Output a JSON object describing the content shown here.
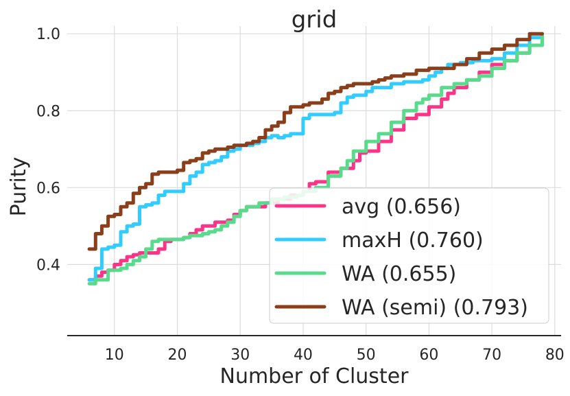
{
  "chart_data": {
    "type": "line",
    "title": "grid",
    "xlabel": "Number of Cluster",
    "ylabel": "Purity",
    "xlim": [
      2.5,
      81
    ],
    "ylim": [
      0.215,
      1.02
    ],
    "xticks": [
      10,
      20,
      30,
      40,
      50,
      60,
      70,
      80
    ],
    "xtick_labels": [
      "10",
      "20",
      "30",
      "40",
      "50",
      "60",
      "70",
      "80"
    ],
    "yticks": [
      0.4,
      0.6,
      0.8,
      1.0
    ],
    "ytick_labels": [
      "0.4",
      "0.6",
      "0.8",
      "1.0"
    ],
    "grid": true,
    "legend_position": "lower-right",
    "series": [
      {
        "name": "avg (0.656)",
        "color": "#fa3486",
        "points": [
          [
            6,
            0.36
          ],
          [
            7,
            0.37
          ],
          [
            8,
            0.38
          ],
          [
            9,
            0.385
          ],
          [
            10,
            0.4
          ],
          [
            11,
            0.41
          ],
          [
            12,
            0.42
          ],
          [
            13,
            0.425
          ],
          [
            14,
            0.43
          ],
          [
            16,
            0.43
          ],
          [
            17,
            0.44
          ],
          [
            18,
            0.46
          ],
          [
            19,
            0.465
          ],
          [
            21,
            0.47
          ],
          [
            22,
            0.48
          ],
          [
            23,
            0.49
          ],
          [
            24,
            0.5
          ],
          [
            25,
            0.5
          ],
          [
            26,
            0.51
          ],
          [
            28,
            0.515
          ],
          [
            29,
            0.53
          ],
          [
            30,
            0.54
          ],
          [
            31,
            0.55
          ],
          [
            33,
            0.55
          ],
          [
            34,
            0.56
          ],
          [
            36,
            0.57
          ],
          [
            38,
            0.58
          ],
          [
            40,
            0.59
          ],
          [
            41,
            0.61
          ],
          [
            42,
            0.615
          ],
          [
            44,
            0.64
          ],
          [
            46,
            0.65
          ],
          [
            48,
            0.67
          ],
          [
            49,
            0.69
          ],
          [
            50,
            0.695
          ],
          [
            52,
            0.72
          ],
          [
            54,
            0.75
          ],
          [
            56,
            0.78
          ],
          [
            57,
            0.78
          ],
          [
            58,
            0.79
          ],
          [
            60,
            0.81
          ],
          [
            62,
            0.83
          ],
          [
            63,
            0.845
          ],
          [
            64,
            0.86
          ],
          [
            66,
            0.88
          ],
          [
            68,
            0.9
          ],
          [
            70,
            0.92
          ],
          [
            72,
            0.93
          ],
          [
            74,
            0.95
          ],
          [
            76,
            0.97
          ],
          [
            78,
            1.0
          ]
        ]
      },
      {
        "name": "maxH (0.760)",
        "color": "#33ccff",
        "points": [
          [
            6,
            0.36
          ],
          [
            7,
            0.39
          ],
          [
            8,
            0.44
          ],
          [
            9,
            0.445
          ],
          [
            10,
            0.45
          ],
          [
            11,
            0.485
          ],
          [
            12,
            0.5
          ],
          [
            13,
            0.505
          ],
          [
            14,
            0.55
          ],
          [
            15,
            0.555
          ],
          [
            16,
            0.56
          ],
          [
            17,
            0.58
          ],
          [
            18,
            0.59
          ],
          [
            20,
            0.59
          ],
          [
            21,
            0.61
          ],
          [
            22,
            0.63
          ],
          [
            23,
            0.64
          ],
          [
            24,
            0.66
          ],
          [
            25,
            0.665
          ],
          [
            26,
            0.67
          ],
          [
            27,
            0.68
          ],
          [
            28,
            0.695
          ],
          [
            29,
            0.7
          ],
          [
            30,
            0.71
          ],
          [
            31,
            0.71
          ],
          [
            32,
            0.715
          ],
          [
            33,
            0.72
          ],
          [
            34,
            0.73
          ],
          [
            35,
            0.735
          ],
          [
            36,
            0.73
          ],
          [
            37,
            0.735
          ],
          [
            38,
            0.74
          ],
          [
            39,
            0.74
          ],
          [
            40,
            0.78
          ],
          [
            41,
            0.79
          ],
          [
            44,
            0.79
          ],
          [
            45,
            0.795
          ],
          [
            46,
            0.82
          ],
          [
            47,
            0.835
          ],
          [
            48,
            0.84
          ],
          [
            49,
            0.84
          ],
          [
            50,
            0.85
          ],
          [
            51,
            0.86
          ],
          [
            52,
            0.86
          ],
          [
            53,
            0.86
          ],
          [
            54,
            0.87
          ],
          [
            56,
            0.875
          ],
          [
            57,
            0.875
          ],
          [
            58,
            0.875
          ],
          [
            59,
            0.88
          ],
          [
            60,
            0.89
          ],
          [
            61,
            0.9
          ],
          [
            62,
            0.91
          ],
          [
            63,
            0.92
          ],
          [
            65,
            0.925
          ],
          [
            67,
            0.93
          ],
          [
            70,
            0.935
          ],
          [
            72,
            0.95
          ],
          [
            74,
            0.97
          ],
          [
            76,
            0.99
          ],
          [
            78,
            1.0
          ]
        ]
      },
      {
        "name": "WA (0.655)",
        "color": "#58db8a",
        "points": [
          [
            6,
            0.35
          ],
          [
            7,
            0.36
          ],
          [
            8,
            0.36
          ],
          [
            9,
            0.385
          ],
          [
            10,
            0.385
          ],
          [
            11,
            0.39
          ],
          [
            12,
            0.4
          ],
          [
            13,
            0.41
          ],
          [
            14,
            0.42
          ],
          [
            15,
            0.44
          ],
          [
            16,
            0.46
          ],
          [
            17,
            0.465
          ],
          [
            20,
            0.465
          ],
          [
            21,
            0.47
          ],
          [
            22,
            0.475
          ],
          [
            24,
            0.48
          ],
          [
            25,
            0.485
          ],
          [
            26,
            0.49
          ],
          [
            27,
            0.5
          ],
          [
            28,
            0.51
          ],
          [
            29,
            0.525
          ],
          [
            30,
            0.54
          ],
          [
            31,
            0.55
          ],
          [
            33,
            0.56
          ],
          [
            35,
            0.57
          ],
          [
            37,
            0.575
          ],
          [
            39,
            0.58
          ],
          [
            40,
            0.59
          ],
          [
            42,
            0.6
          ],
          [
            44,
            0.63
          ],
          [
            46,
            0.65
          ],
          [
            47,
            0.67
          ],
          [
            48,
            0.695
          ],
          [
            50,
            0.72
          ],
          [
            52,
            0.74
          ],
          [
            54,
            0.77
          ],
          [
            56,
            0.8
          ],
          [
            58,
            0.82
          ],
          [
            59,
            0.83
          ],
          [
            60,
            0.84
          ],
          [
            62,
            0.86
          ],
          [
            64,
            0.87
          ],
          [
            66,
            0.88
          ],
          [
            68,
            0.89
          ],
          [
            70,
            0.91
          ],
          [
            72,
            0.93
          ],
          [
            74,
            0.95
          ],
          [
            76,
            0.97
          ],
          [
            78,
            1.0
          ]
        ]
      },
      {
        "name": "WA (semi) (0.793)",
        "color": "#8b3e1a",
        "points": [
          [
            6,
            0.44
          ],
          [
            7,
            0.48
          ],
          [
            8,
            0.5
          ],
          [
            9,
            0.525
          ],
          [
            10,
            0.53
          ],
          [
            11,
            0.55
          ],
          [
            12,
            0.56
          ],
          [
            13,
            0.585
          ],
          [
            14,
            0.6
          ],
          [
            15,
            0.61
          ],
          [
            16,
            0.635
          ],
          [
            17,
            0.64
          ],
          [
            20,
            0.645
          ],
          [
            21,
            0.665
          ],
          [
            22,
            0.67
          ],
          [
            23,
            0.675
          ],
          [
            24,
            0.69
          ],
          [
            25,
            0.695
          ],
          [
            26,
            0.7
          ],
          [
            28,
            0.705
          ],
          [
            29,
            0.71
          ],
          [
            31,
            0.715
          ],
          [
            32,
            0.72
          ],
          [
            33,
            0.73
          ],
          [
            34,
            0.75
          ],
          [
            35,
            0.76
          ],
          [
            36,
            0.77
          ],
          [
            37,
            0.795
          ],
          [
            38,
            0.81
          ],
          [
            40,
            0.815
          ],
          [
            41,
            0.82
          ],
          [
            43,
            0.83
          ],
          [
            44,
            0.845
          ],
          [
            45,
            0.85
          ],
          [
            46,
            0.86
          ],
          [
            47,
            0.865
          ],
          [
            48,
            0.87
          ],
          [
            51,
            0.875
          ],
          [
            52,
            0.88
          ],
          [
            53,
            0.885
          ],
          [
            54,
            0.89
          ],
          [
            56,
            0.895
          ],
          [
            58,
            0.905
          ],
          [
            60,
            0.91
          ],
          [
            62,
            0.91
          ],
          [
            64,
            0.92
          ],
          [
            66,
            0.935
          ],
          [
            68,
            0.95
          ],
          [
            70,
            0.96
          ],
          [
            72,
            0.97
          ],
          [
            74,
            0.985
          ],
          [
            76,
            1.0
          ],
          [
            78,
            1.0
          ]
        ]
      }
    ]
  }
}
